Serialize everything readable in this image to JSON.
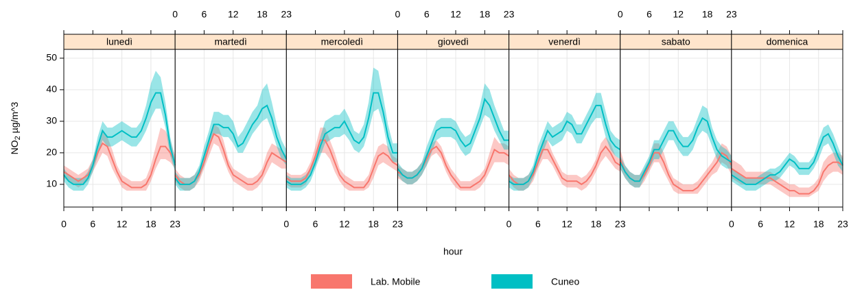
{
  "chart_data": {
    "type": "line",
    "panels": [
      "lunedì",
      "martedì",
      "mercoledì",
      "giovedì",
      "venerdì",
      "sabato",
      "domenica"
    ],
    "ylabel": "NO",
    "ylabel_sub": "2",
    "ylabel_rest": " µg/m^3",
    "xlabel": "hour",
    "x": [
      0,
      1,
      2,
      3,
      4,
      5,
      6,
      7,
      8,
      9,
      10,
      11,
      12,
      13,
      14,
      15,
      16,
      17,
      18,
      19,
      20,
      21,
      22,
      23
    ],
    "xlim": [
      0,
      23
    ],
    "xticks": [
      0,
      6,
      12,
      18,
      23
    ],
    "ylim": [
      2.8,
      52.8
    ],
    "yticks": [
      10,
      20,
      30,
      40,
      50
    ],
    "grid": true,
    "series": [
      {
        "name": "Lab. Mobile",
        "color": "#f8766d",
        "values": [
          [
            14,
            13,
            12,
            11,
            12,
            13,
            16,
            20,
            23,
            22,
            18,
            14,
            11,
            10,
            9,
            9,
            9,
            10,
            13,
            18,
            22,
            22,
            20,
            17
          ],
          [
            13,
            11,
            10,
            10,
            11,
            13,
            17,
            22,
            26,
            25,
            21,
            16,
            13,
            12,
            11,
            10,
            10,
            11,
            13,
            17,
            20,
            19,
            18,
            17
          ],
          [
            12,
            11,
            11,
            11,
            12,
            15,
            19,
            24,
            24,
            21,
            17,
            13,
            11,
            10,
            9,
            9,
            9,
            11,
            15,
            19,
            20,
            19,
            17,
            16
          ],
          [
            14,
            13,
            12,
            12,
            13,
            15,
            18,
            21,
            22,
            20,
            16,
            13,
            11,
            9,
            9,
            9,
            10,
            11,
            13,
            17,
            21,
            20,
            20,
            19
          ],
          [
            13,
            11,
            10,
            10,
            11,
            13,
            17,
            21,
            21,
            18,
            15,
            12,
            11,
            11,
            11,
            10,
            11,
            13,
            16,
            20,
            22,
            20,
            17,
            16
          ],
          [
            18,
            14,
            12,
            11,
            11,
            13,
            16,
            20,
            20,
            17,
            13,
            10,
            9,
            8,
            8,
            8,
            9,
            11,
            13,
            15,
            17,
            20,
            19,
            16
          ],
          [
            15,
            14,
            13,
            12,
            12,
            12,
            12,
            12,
            12,
            11,
            10,
            9,
            8,
            8,
            7,
            7,
            7,
            8,
            10,
            14,
            16,
            17,
            17,
            16
          ]
        ],
        "lower": [
          [
            12,
            11,
            10,
            9,
            10,
            11,
            14,
            17,
            20,
            19,
            15,
            12,
            9,
            8,
            8,
            8,
            8,
            8,
            11,
            15,
            18,
            18,
            17,
            15
          ],
          [
            11,
            9,
            8,
            8,
            9,
            11,
            15,
            19,
            23,
            22,
            18,
            14,
            11,
            10,
            9,
            8,
            8,
            9,
            11,
            14,
            17,
            16,
            15,
            15
          ],
          [
            10,
            9,
            9,
            9,
            10,
            13,
            16,
            20,
            20,
            18,
            14,
            11,
            9,
            8,
            8,
            8,
            8,
            9,
            12,
            16,
            17,
            16,
            15,
            14
          ],
          [
            12,
            11,
            10,
            10,
            11,
            13,
            16,
            19,
            20,
            18,
            14,
            11,
            9,
            8,
            8,
            8,
            8,
            9,
            11,
            14,
            17,
            17,
            17,
            16
          ],
          [
            11,
            9,
            8,
            8,
            9,
            11,
            15,
            18,
            18,
            16,
            13,
            10,
            9,
            9,
            9,
            8,
            9,
            11,
            14,
            17,
            19,
            17,
            15,
            14
          ],
          [
            15,
            12,
            10,
            9,
            9,
            11,
            14,
            17,
            17,
            14,
            11,
            8,
            7,
            7,
            7,
            7,
            7,
            9,
            11,
            13,
            14,
            17,
            16,
            13
          ],
          [
            12,
            11,
            10,
            10,
            10,
            10,
            10,
            10,
            10,
            9,
            8,
            7,
            6,
            6,
            6,
            6,
            6,
            7,
            8,
            11,
            13,
            14,
            14,
            13
          ]
        ],
        "upper": [
          [
            16,
            15,
            14,
            13,
            14,
            15,
            18,
            23,
            27,
            25,
            21,
            16,
            13,
            12,
            11,
            11,
            11,
            12,
            16,
            22,
            28,
            27,
            24,
            19
          ],
          [
            15,
            13,
            12,
            12,
            13,
            15,
            19,
            25,
            29,
            28,
            24,
            18,
            15,
            14,
            13,
            12,
            12,
            13,
            15,
            20,
            23,
            22,
            21,
            19
          ],
          [
            14,
            13,
            13,
            13,
            14,
            17,
            22,
            28,
            28,
            24,
            20,
            15,
            13,
            12,
            11,
            11,
            11,
            13,
            18,
            22,
            23,
            22,
            19,
            18
          ],
          [
            16,
            15,
            14,
            14,
            15,
            17,
            20,
            23,
            24,
            22,
            18,
            15,
            13,
            11,
            11,
            11,
            12,
            13,
            15,
            20,
            25,
            23,
            23,
            22
          ],
          [
            15,
            13,
            12,
            12,
            13,
            15,
            19,
            24,
            24,
            20,
            17,
            14,
            13,
            13,
            13,
            12,
            13,
            15,
            18,
            23,
            25,
            23,
            19,
            18
          ],
          [
            21,
            16,
            14,
            13,
            13,
            15,
            18,
            23,
            23,
            20,
            15,
            12,
            11,
            10,
            10,
            10,
            11,
            13,
            15,
            17,
            20,
            23,
            22,
            19
          ],
          [
            18,
            17,
            16,
            14,
            14,
            14,
            14,
            14,
            14,
            13,
            12,
            11,
            10,
            10,
            9,
            9,
            9,
            10,
            12,
            17,
            19,
            20,
            20,
            19
          ]
        ]
      },
      {
        "name": "Cuneo",
        "color": "#00bfc4",
        "values": [
          [
            13,
            11,
            10,
            10,
            10,
            12,
            16,
            22,
            27,
            25,
            25,
            26,
            27,
            26,
            25,
            25,
            27,
            31,
            36,
            39,
            39,
            32,
            22,
            16
          ],
          [
            12,
            10,
            10,
            10,
            11,
            14,
            19,
            24,
            29,
            29,
            28,
            28,
            26,
            22,
            23,
            26,
            29,
            31,
            34,
            35,
            31,
            25,
            21,
            18
          ],
          [
            11,
            10,
            10,
            10,
            11,
            13,
            17,
            22,
            26,
            27,
            28,
            28,
            30,
            27,
            24,
            23,
            25,
            31,
            39,
            39,
            33,
            25,
            20,
            20
          ],
          [
            15,
            13,
            12,
            12,
            13,
            15,
            19,
            23,
            27,
            28,
            28,
            28,
            27,
            24,
            22,
            23,
            27,
            31,
            37,
            35,
            31,
            27,
            24,
            24
          ],
          [
            11,
            10,
            10,
            10,
            11,
            14,
            19,
            23,
            27,
            25,
            26,
            27,
            30,
            29,
            26,
            26,
            29,
            32,
            35,
            35,
            29,
            24,
            22,
            21
          ],
          [
            17,
            14,
            12,
            11,
            11,
            14,
            17,
            21,
            21,
            24,
            27,
            27,
            24,
            22,
            22,
            24,
            28,
            31,
            30,
            25,
            21,
            19,
            18,
            17
          ],
          [
            13,
            12,
            11,
            10,
            10,
            10,
            11,
            12,
            13,
            13,
            14,
            16,
            18,
            17,
            15,
            15,
            15,
            17,
            21,
            25,
            26,
            23,
            19,
            16
          ]
        ],
        "lower": [
          [
            11,
            9,
            8,
            8,
            8,
            10,
            14,
            19,
            24,
            22,
            22,
            23,
            24,
            23,
            22,
            22,
            24,
            27,
            31,
            34,
            34,
            28,
            19,
            14
          ],
          [
            10,
            8,
            8,
            8,
            9,
            12,
            16,
            21,
            26,
            26,
            25,
            25,
            23,
            20,
            20,
            23,
            26,
            28,
            30,
            31,
            27,
            22,
            18,
            16
          ],
          [
            9,
            8,
            8,
            8,
            9,
            11,
            15,
            19,
            23,
            24,
            25,
            25,
            26,
            24,
            21,
            20,
            22,
            27,
            33,
            34,
            29,
            21,
            17,
            17
          ],
          [
            13,
            11,
            10,
            10,
            11,
            13,
            16,
            20,
            24,
            25,
            25,
            25,
            24,
            21,
            19,
            20,
            24,
            28,
            32,
            31,
            27,
            24,
            21,
            21
          ],
          [
            9,
            8,
            8,
            8,
            9,
            12,
            16,
            20,
            24,
            22,
            23,
            24,
            27,
            26,
            23,
            23,
            26,
            29,
            31,
            31,
            25,
            21,
            19,
            18
          ],
          [
            15,
            12,
            10,
            9,
            9,
            12,
            15,
            18,
            18,
            21,
            24,
            24,
            21,
            19,
            19,
            21,
            25,
            27,
            26,
            22,
            18,
            16,
            15,
            15
          ],
          [
            11,
            10,
            9,
            8,
            8,
            8,
            9,
            10,
            11,
            11,
            12,
            14,
            16,
            15,
            13,
            13,
            13,
            15,
            18,
            22,
            23,
            20,
            16,
            14
          ]
        ],
        "upper": [
          [
            15,
            13,
            12,
            12,
            12,
            14,
            18,
            25,
            30,
            28,
            28,
            29,
            30,
            29,
            28,
            28,
            30,
            35,
            42,
            46,
            44,
            36,
            25,
            18
          ],
          [
            14,
            12,
            12,
            12,
            13,
            16,
            22,
            27,
            33,
            33,
            32,
            32,
            30,
            25,
            27,
            30,
            33,
            35,
            40,
            42,
            36,
            29,
            24,
            21
          ],
          [
            13,
            12,
            12,
            12,
            13,
            15,
            19,
            25,
            30,
            31,
            32,
            32,
            34,
            31,
            27,
            26,
            29,
            36,
            47,
            46,
            38,
            29,
            23,
            23
          ],
          [
            17,
            15,
            14,
            14,
            15,
            17,
            22,
            26,
            30,
            31,
            31,
            31,
            30,
            27,
            25,
            26,
            30,
            35,
            42,
            40,
            35,
            31,
            27,
            27
          ],
          [
            13,
            12,
            12,
            12,
            13,
            16,
            22,
            26,
            30,
            28,
            29,
            30,
            33,
            32,
            29,
            29,
            32,
            35,
            39,
            39,
            33,
            27,
            25,
            24
          ],
          [
            19,
            16,
            14,
            13,
            13,
            16,
            19,
            24,
            24,
            27,
            30,
            30,
            27,
            25,
            25,
            27,
            31,
            35,
            34,
            28,
            24,
            22,
            21,
            19
          ],
          [
            15,
            14,
            13,
            12,
            12,
            12,
            13,
            14,
            15,
            15,
            16,
            18,
            20,
            19,
            17,
            17,
            17,
            19,
            24,
            28,
            29,
            26,
            22,
            18
          ]
        ]
      }
    ]
  }
}
